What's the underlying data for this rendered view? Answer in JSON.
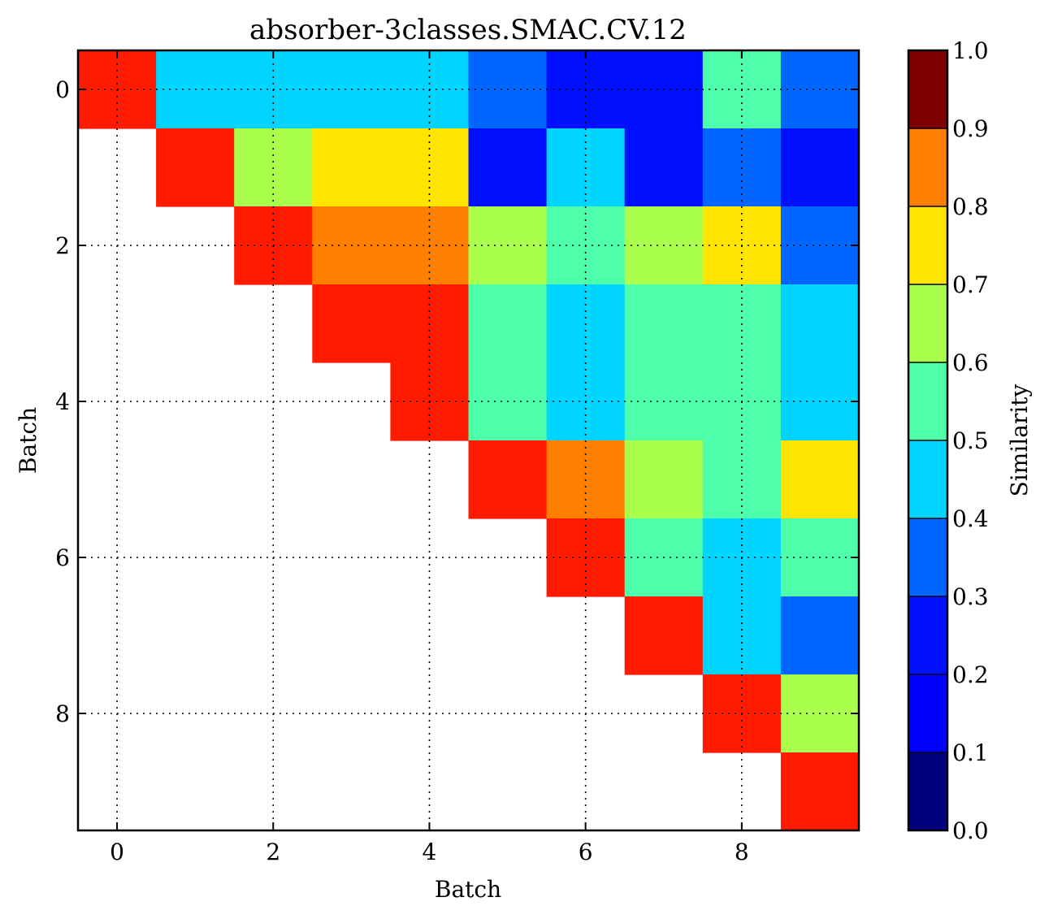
{
  "chart_data": {
    "type": "heatmap",
    "title": "absorber-3classes.SMAC.CV.12",
    "xlabel": "Batch",
    "ylabel": "Batch",
    "colorbar_label": "Similarity",
    "colormap": "jet",
    "grid": true,
    "xlim": [
      -0.5,
      9.5
    ],
    "ylim": [
      9.5,
      -0.5
    ],
    "x_ticks": [
      0,
      2,
      4,
      6,
      8
    ],
    "y_ticks": [
      0,
      2,
      4,
      6,
      8
    ],
    "x_tick_labels": [
      "0",
      "2",
      "4",
      "6",
      "8"
    ],
    "y_tick_labels": [
      "0",
      "2",
      "4",
      "6",
      "8"
    ],
    "colorbar_range": [
      0.0,
      1.0
    ],
    "colorbar_ticks": [
      0.0,
      0.1,
      0.2,
      0.3,
      0.4,
      0.5,
      0.6,
      0.7,
      0.8,
      0.9,
      1.0
    ],
    "colorbar_tick_labels": [
      "0.0",
      "0.1",
      "0.2",
      "0.3",
      "0.4",
      "0.5",
      "0.6",
      "0.7",
      "0.8",
      "0.9",
      "1.0"
    ],
    "colorbar_colors": [
      "#00007f",
      "#0000ff",
      "#0010ff",
      "#0066ff",
      "#00d4ff",
      "#4dffaa",
      "#aaff4d",
      "#ffe500",
      "#ff7f00",
      "#ff1a00",
      "#7f0000"
    ],
    "matrix": [
      [
        0.95,
        0.45,
        0.45,
        0.45,
        0.45,
        0.35,
        0.25,
        0.25,
        0.55,
        0.35
      ],
      [
        null,
        0.95,
        0.65,
        0.75,
        0.75,
        0.25,
        0.45,
        0.25,
        0.35,
        0.25
      ],
      [
        null,
        null,
        0.95,
        0.85,
        0.85,
        0.65,
        0.55,
        0.65,
        0.75,
        0.35
      ],
      [
        null,
        null,
        null,
        0.95,
        0.95,
        0.55,
        0.45,
        0.55,
        0.55,
        0.45
      ],
      [
        null,
        null,
        null,
        null,
        0.95,
        0.55,
        0.45,
        0.55,
        0.55,
        0.45
      ],
      [
        null,
        null,
        null,
        null,
        null,
        0.95,
        0.85,
        0.65,
        0.55,
        0.75
      ],
      [
        null,
        null,
        null,
        null,
        null,
        null,
        0.95,
        0.55,
        0.45,
        0.55
      ],
      [
        null,
        null,
        null,
        null,
        null,
        null,
        null,
        0.95,
        0.45,
        0.35
      ],
      [
        null,
        null,
        null,
        null,
        null,
        null,
        null,
        null,
        0.95,
        0.65
      ],
      [
        null,
        null,
        null,
        null,
        null,
        null,
        null,
        null,
        null,
        0.95
      ]
    ]
  }
}
